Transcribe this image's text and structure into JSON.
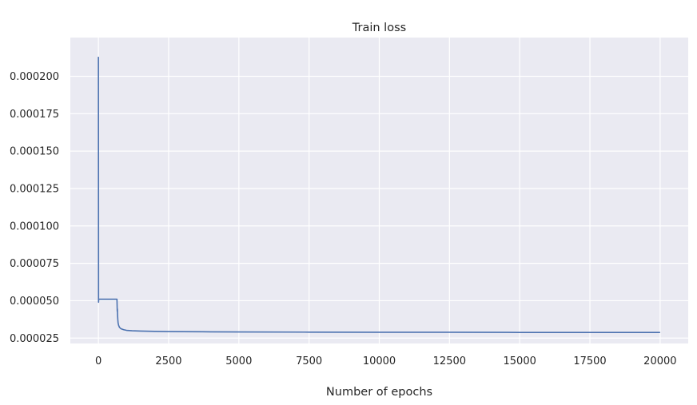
{
  "chart_data": {
    "type": "line",
    "title": "Train loss",
    "xlabel": "Number of epochs",
    "ylabel": "",
    "xlim": [
      -1000,
      21000
    ],
    "ylim": [
      2.14e-05,
      0.0002259
    ],
    "xticks": [
      0,
      2500,
      5000,
      7500,
      10000,
      12500,
      15000,
      17500,
      20000
    ],
    "xtick_labels": [
      "0",
      "2500",
      "5000",
      "7500",
      "10000",
      "12500",
      "15000",
      "17500",
      "20000"
    ],
    "yticks": [
      2.5e-05,
      5e-05,
      7.5e-05,
      0.0001,
      0.000125,
      0.00015,
      0.000175,
      0.0002
    ],
    "ytick_labels": [
      "0.000025",
      "0.000050",
      "0.000075",
      "0.000100",
      "0.000125",
      "0.000150",
      "0.000175",
      "0.000200"
    ],
    "grid": true,
    "background": "#eaeaf2",
    "grid_color": "#ffffff",
    "series": [
      {
        "color": "#4c72b0",
        "x": [
          0,
          5,
          8,
          15,
          25,
          40,
          60,
          100,
          200,
          400,
          660,
          670,
          675,
          680,
          690,
          700,
          720,
          750,
          800,
          900,
          1000,
          1200,
          1500,
          2000,
          2500,
          3000,
          4000,
          5000,
          7500,
          10000,
          12500,
          15000,
          17500,
          20000
        ],
        "y": [
          0.000213,
          4.9e-05,
          5.05e-05,
          5.08e-05,
          5.1e-05,
          5.1e-05,
          5.1e-05,
          5.1e-05,
          5.1e-05,
          5.1e-05,
          5.1e-05,
          4.3e-05,
          4.45e-05,
          4.1e-05,
          3.75e-05,
          3.52e-05,
          3.35e-05,
          3.22e-05,
          3.13e-05,
          3.06e-05,
          3.02e-05,
          2.99e-05,
          2.97e-05,
          2.95e-05,
          2.94e-05,
          2.93e-05,
          2.92e-05,
          2.91e-05,
          2.9e-05,
          2.89e-05,
          2.89e-05,
          2.88e-05,
          2.88e-05,
          2.88e-05
        ]
      }
    ]
  }
}
